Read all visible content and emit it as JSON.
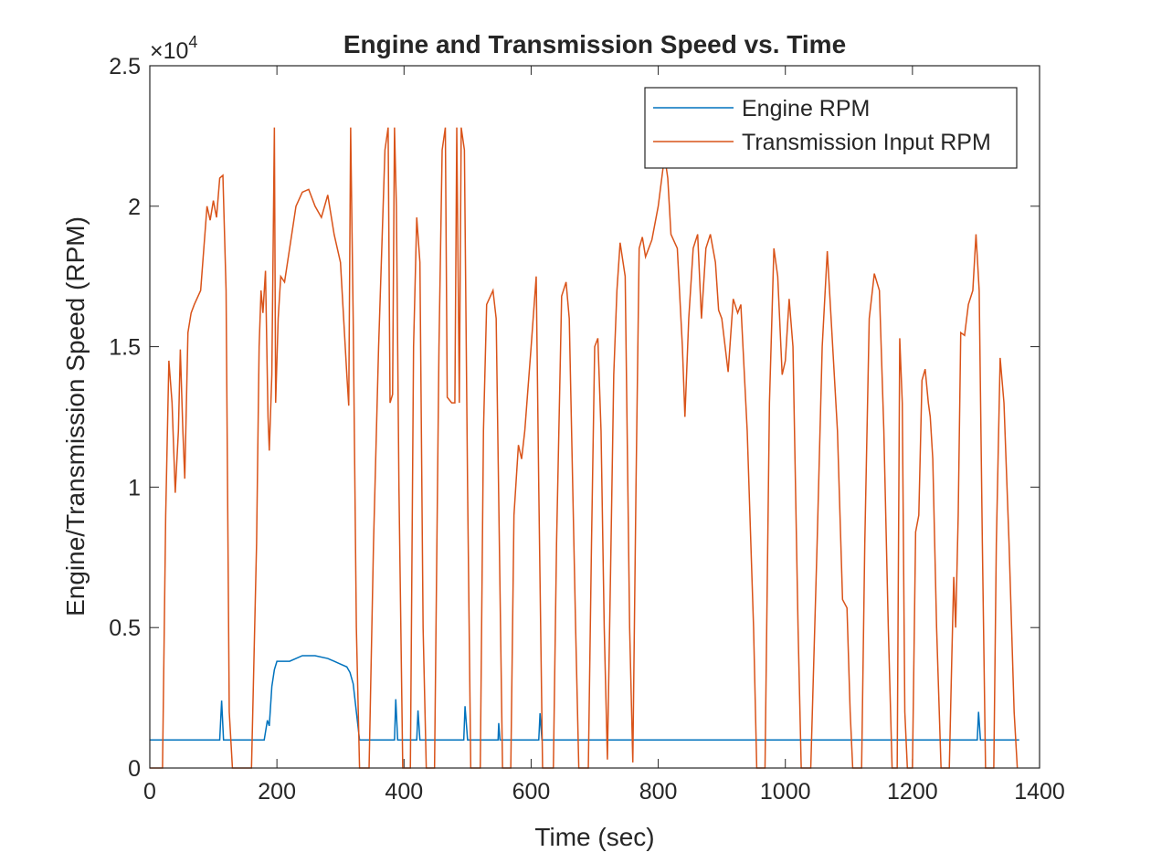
{
  "chart_data": {
    "type": "line",
    "title": "Engine and Transmission Speed vs. Time",
    "xlabel": "Time (sec)",
    "ylabel": "Engine/Transmission Speed (RPM)",
    "y_exponent": {
      "base": "×10",
      "power": "4"
    },
    "xlim": [
      0,
      1400
    ],
    "xticks": [
      0,
      200,
      400,
      600,
      800,
      1000,
      1200,
      1400
    ],
    "ylim": [
      0,
      25000
    ],
    "yticks": [
      0,
      {
        "value": 5000,
        "label": "0.5"
      },
      {
        "value": 10000,
        "label": "1"
      },
      {
        "value": 15000,
        "label": "1.5"
      },
      {
        "value": 20000,
        "label": "2"
      },
      {
        "value": 25000,
        "label": "2.5"
      }
    ],
    "grid": false,
    "legend": "northeast",
    "series": [
      {
        "name": "Engine RPM",
        "color": "#0072bd",
        "x": [
          0,
          110,
          113,
          116,
          180,
          185,
          188,
          192,
          196,
          200,
          220,
          240,
          260,
          280,
          290,
          300,
          310,
          315,
          320,
          325,
          330,
          385,
          387,
          390,
          420,
          422,
          425,
          494,
          496,
          500,
          548,
          549,
          551,
          612,
          614,
          617,
          1302,
          1304,
          1307,
          1368
        ],
        "values": [
          1000,
          1000,
          2400,
          1000,
          1000,
          1700,
          1500,
          2900,
          3500,
          3800,
          3800,
          4000,
          4000,
          3900,
          3800,
          3700,
          3600,
          3400,
          3000,
          2000,
          1000,
          1000,
          2450,
          1000,
          1000,
          2050,
          1000,
          1000,
          2200,
          1000,
          1000,
          1600,
          1000,
          1000,
          1950,
          1000,
          1000,
          2000,
          1000,
          1000
        ]
      },
      {
        "name": "Transmission Input RPM",
        "color": "#d95319",
        "x": [
          0,
          20,
          25,
          30,
          35,
          40,
          45,
          48,
          52,
          55,
          60,
          65,
          70,
          80,
          85,
          90,
          95,
          100,
          105,
          110,
          115,
          120,
          125,
          130,
          160,
          168,
          172,
          175,
          178,
          182,
          186,
          188,
          192,
          196,
          198,
          202,
          206,
          212,
          220,
          230,
          240,
          250,
          260,
          270,
          280,
          290,
          300,
          305,
          310,
          313,
          316,
          320,
          325,
          330,
          345,
          352,
          360,
          370,
          375,
          378,
          382,
          385,
          388,
          392,
          398,
          410,
          415,
          420,
          425,
          430,
          435,
          448,
          455,
          460,
          465,
          468,
          475,
          480,
          483,
          487,
          490,
          495,
          500,
          505,
          520,
          525,
          530,
          540,
          545,
          550,
          555,
          568,
          573,
          580,
          585,
          590,
          600,
          608,
          612,
          618,
          635,
          640,
          648,
          655,
          660,
          670,
          675,
          690,
          695,
          700,
          705,
          710,
          715,
          720,
          725,
          730,
          735,
          740,
          748,
          755,
          760,
          765,
          770,
          775,
          780,
          790,
          800,
          810,
          815,
          820,
          830,
          838,
          842,
          848,
          855,
          862,
          868,
          875,
          882,
          890,
          895,
          900,
          910,
          918,
          925,
          930,
          940,
          950,
          955,
          968,
          975,
          982,
          988,
          995,
          1000,
          1006,
          1012,
          1020,
          1025,
          1040,
          1050,
          1058,
          1066,
          1072,
          1082,
          1090,
          1097,
          1102,
          1106,
          1120,
          1125,
          1132,
          1140,
          1148,
          1155,
          1162,
          1168,
          1176,
          1180,
          1184,
          1188,
          1192,
          1200,
          1205,
          1210,
          1215,
          1220,
          1225,
          1228,
          1232,
          1238,
          1245,
          1258,
          1262,
          1265,
          1268,
          1272,
          1276,
          1282,
          1288,
          1295,
          1300,
          1305,
          1310,
          1315,
          1328,
          1332,
          1338,
          1344,
          1352,
          1360,
          1365
        ],
        "values": [
          0,
          0,
          9000,
          14500,
          13000,
          9800,
          12000,
          14900,
          12000,
          10300,
          15500,
          16200,
          16500,
          17000,
          18500,
          20000,
          19500,
          20200,
          19600,
          21000,
          21100,
          17000,
          2000,
          0,
          0,
          8000,
          15000,
          17000,
          16200,
          17700,
          12500,
          11300,
          14000,
          22800,
          13000,
          16000,
          17500,
          17300,
          18500,
          20000,
          20500,
          20600,
          20000,
          19600,
          20400,
          19000,
          18000,
          16000,
          14000,
          12900,
          22800,
          16000,
          5000,
          0,
          0,
          8000,
          15000,
          22000,
          22800,
          13000,
          13300,
          22800,
          20000,
          10000,
          0,
          0,
          15000,
          19600,
          18000,
          5000,
          0,
          0,
          15000,
          22000,
          22800,
          13200,
          13000,
          13000,
          22800,
          13000,
          22800,
          22000,
          10000,
          0,
          0,
          12000,
          16500,
          17000,
          16000,
          8000,
          0,
          0,
          9000,
          11500,
          11000,
          12000,
          15000,
          17500,
          10000,
          0,
          0,
          8000,
          16800,
          17300,
          16000,
          5000,
          0,
          0,
          8000,
          15000,
          15300,
          12000,
          5000,
          300,
          7000,
          14000,
          17000,
          18700,
          17500,
          5000,
          200,
          10000,
          18500,
          18900,
          18200,
          18800,
          20000,
          21800,
          21000,
          19000,
          18500,
          15000,
          12500,
          16000,
          18500,
          19000,
          16000,
          18500,
          19000,
          18000,
          16300,
          16000,
          14100,
          16700,
          16200,
          16500,
          12000,
          5000,
          0,
          0,
          13000,
          18500,
          17500,
          14000,
          14500,
          16700,
          15000,
          5000,
          0,
          0,
          8000,
          15000,
          18400,
          16000,
          12000,
          6000,
          5700,
          2000,
          0,
          0,
          8000,
          16000,
          17600,
          17000,
          12000,
          5000,
          0,
          0,
          15300,
          13000,
          2000,
          0,
          0,
          8400,
          9000,
          13800,
          14200,
          13000,
          12500,
          11000,
          5000,
          0,
          0,
          4000,
          6800,
          5000,
          9000,
          15500,
          15400,
          16500,
          17000,
          19000,
          17000,
          8000,
          0,
          0,
          8000,
          14600,
          13000,
          8000,
          2000,
          0
        ]
      }
    ]
  }
}
